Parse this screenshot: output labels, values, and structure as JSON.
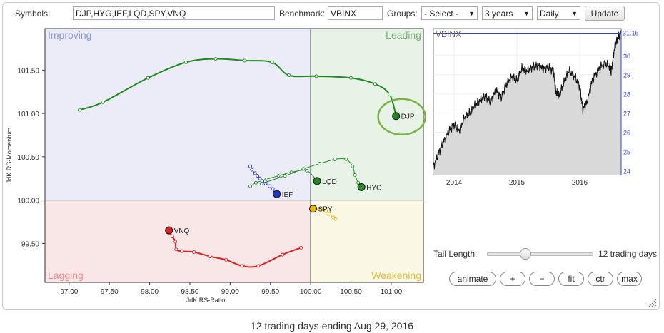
{
  "toolbar": {
    "symbols_label": "Symbols:",
    "symbols_value": "DJP,HYG,IEF,LQD,SPY,VNQ",
    "benchmark_label": "Benchmark:",
    "benchmark_value": "VBINX",
    "groups_label": "Groups:",
    "groups_value": "- Select -",
    "period_value": "3 years",
    "frequency_value": "Daily",
    "update_label": "Update"
  },
  "rrg": {
    "quadrants": {
      "improving": "Improving",
      "leading": "Leading",
      "lagging": "Lagging",
      "weakening": "Weakening"
    },
    "colors": {
      "improving": "#ececf9",
      "leading": "#e8f3e8",
      "lagging": "#f9e6e6",
      "weakening": "#fbf7e5",
      "improving_text": "#8d96d8",
      "leading_text": "#7ab07a",
      "lagging_text": "#e88c8c",
      "weakening_text": "#e0be3c"
    },
    "xlabel": "JdK RS-Ratio",
    "ylabel": "JdK RS-Momentum",
    "xlim": [
      96.7,
      101.4
    ],
    "ylim": [
      99.05,
      101.98
    ],
    "center": [
      100.0,
      100.0
    ],
    "xticks": [
      "97.00",
      "97.50",
      "98.00",
      "98.50",
      "99.00",
      "99.50",
      "100.00",
      "100.50",
      "101.00"
    ],
    "xtick_values": [
      97.0,
      97.5,
      98.0,
      98.5,
      99.0,
      99.5,
      100.0,
      100.5,
      101.0
    ],
    "yticks": [
      "99.50",
      "100.00",
      "100.50",
      "101.00",
      "101.50"
    ],
    "ytick_values": [
      99.5,
      100.0,
      100.5,
      101.0,
      101.5
    ],
    "highlight_symbol": "DJP",
    "highlight_color": "#7cb342"
  },
  "chart_data": [
    {
      "type": "scatter",
      "title": "",
      "xlabel": "JdK RS-Ratio",
      "ylabel": "JdK RS-Momentum",
      "series": [
        {
          "name": "DJP",
          "color": "#1f8a1f",
          "x": [
            97.13,
            97.42,
            97.98,
            98.45,
            98.82,
            99.18,
            99.52,
            99.73,
            100.07,
            100.5,
            100.8,
            100.98,
            101.06
          ],
          "y": [
            101.04,
            101.13,
            101.41,
            101.59,
            101.63,
            101.61,
            101.59,
            101.44,
            101.43,
            101.41,
            101.34,
            101.22,
            100.97
          ]
        },
        {
          "name": "HYG",
          "color": "#1f8a1f",
          "x": [
            99.39,
            99.68,
            99.91,
            100.11,
            100.3,
            100.44,
            100.52,
            100.55,
            100.59,
            100.63
          ],
          "y": [
            100.19,
            100.28,
            100.36,
            100.42,
            100.47,
            100.47,
            100.39,
            100.29,
            100.2,
            100.15
          ]
        },
        {
          "name": "LQD",
          "color": "#1f8a1f",
          "x": [
            99.25,
            99.32,
            99.45,
            99.6,
            99.76,
            99.95,
            100.08
          ],
          "y": [
            100.16,
            100.2,
            100.24,
            100.28,
            100.32,
            100.34,
            100.22
          ]
        },
        {
          "name": "IEF",
          "color": "#2233cc",
          "x": [
            99.25,
            99.27,
            99.31,
            99.34,
            99.37,
            99.4,
            99.44,
            99.49,
            99.53,
            99.56,
            99.58
          ],
          "y": [
            100.39,
            100.35,
            100.31,
            100.28,
            100.25,
            100.22,
            100.19,
            100.16,
            100.13,
            100.1,
            100.07
          ]
        },
        {
          "name": "SPY",
          "color": "#e6b800",
          "x": [
            100.31,
            100.28,
            100.23,
            100.19,
            100.13,
            100.07,
            100.03
          ],
          "y": [
            99.78,
            99.8,
            99.84,
            99.87,
            99.89,
            99.9,
            99.9
          ]
        },
        {
          "name": "VNQ",
          "color": "#e02020",
          "x": [
            99.88,
            99.65,
            99.35,
            99.15,
            98.95,
            98.75,
            98.55,
            98.4,
            98.33,
            98.32,
            98.28,
            98.24
          ],
          "y": [
            99.45,
            99.37,
            99.24,
            99.24,
            99.31,
            99.35,
            99.4,
            99.41,
            99.43,
            99.52,
            99.58,
            99.65
          ]
        }
      ]
    },
    {
      "type": "line",
      "title": "VBINX",
      "last_value_label": "31.16",
      "x_tick_labels": [
        "2014",
        "2015",
        "2016"
      ],
      "x_tick_values": [
        2014.0,
        2015.0,
        2016.0
      ],
      "xlim": [
        2013.67,
        2016.66
      ],
      "ylim": [
        23.8,
        31.4
      ],
      "yticks": [
        24,
        25,
        26,
        27,
        28,
        29,
        30
      ],
      "series": [
        {
          "name": "VBINX",
          "x": [
            2013.67,
            2013.75,
            2013.83,
            2013.92,
            2014.0,
            2014.08,
            2014.17,
            2014.25,
            2014.33,
            2014.42,
            2014.5,
            2014.58,
            2014.67,
            2014.75,
            2014.83,
            2014.92,
            2015.0,
            2015.08,
            2015.17,
            2015.25,
            2015.33,
            2015.42,
            2015.5,
            2015.58,
            2015.62,
            2015.67,
            2015.75,
            2015.83,
            2015.92,
            2016.0,
            2016.05,
            2016.12,
            2016.2,
            2016.3,
            2016.4,
            2016.48,
            2016.5,
            2016.55,
            2016.6,
            2016.66
          ],
          "y": [
            24.2,
            24.9,
            25.5,
            26.1,
            26.4,
            26.1,
            26.8,
            27.0,
            27.4,
            27.7,
            27.9,
            27.6,
            28.2,
            27.8,
            28.5,
            28.9,
            28.7,
            29.3,
            29.2,
            29.4,
            29.5,
            29.3,
            29.4,
            29.2,
            28.1,
            27.9,
            28.6,
            29.2,
            28.9,
            28.4,
            27.2,
            27.6,
            28.7,
            29.3,
            29.6,
            29.4,
            29.1,
            30.3,
            30.9,
            31.16
          ]
        }
      ]
    }
  ],
  "controls": {
    "tail_length_label": "Tail Length:",
    "tail_length_value": "12 trading days",
    "tail_fraction": 0.36,
    "animate": "animate",
    "plus": "+",
    "minus": "−",
    "fit": "fit",
    "ctr": "ctr",
    "max": "max"
  },
  "caption": "12 trading days ending Aug 29, 2016"
}
